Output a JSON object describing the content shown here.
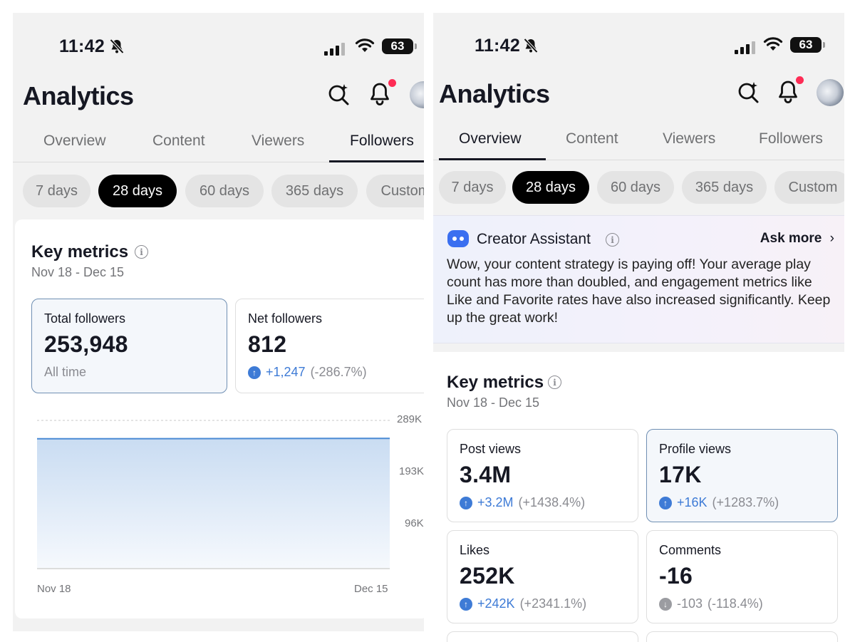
{
  "left": {
    "status": {
      "time": "11:42",
      "battery": "63"
    },
    "title": "Analytics",
    "tabs": [
      "Overview",
      "Content",
      "Viewers",
      "Followers"
    ],
    "active_tab": "Followers",
    "periods": [
      "7 days",
      "28 days",
      "60 days",
      "365 days",
      "Custom"
    ],
    "active_period": "28 days",
    "key_metrics": {
      "title": "Key metrics",
      "date_range": "Nov 18 - Dec 15"
    },
    "metrics": [
      {
        "label": "Total followers",
        "value": "253,948",
        "sub": "All time"
      },
      {
        "label": "Net followers",
        "value": "812",
        "change": "+1,247",
        "pct": "(-286.7%)"
      }
    ]
  },
  "chart_data": {
    "type": "area",
    "x": [
      "Nov 18",
      "Dec 15"
    ],
    "x_tick_labels": [
      "Nov 18",
      "Dec 15"
    ],
    "y_tick_labels": [
      "289K",
      "193K",
      "96K"
    ],
    "y_ticks": [
      289000,
      193000,
      96000
    ],
    "ylim": [
      0,
      289000
    ],
    "series": [
      {
        "values": [
          253136,
          253948
        ]
      }
    ],
    "grid": true,
    "color": "#4a8ad4"
  },
  "right": {
    "status": {
      "time": "11:42",
      "battery": "63"
    },
    "title": "Analytics",
    "tabs": [
      "Overview",
      "Content",
      "Viewers",
      "Followers"
    ],
    "active_tab": "Overview",
    "periods": [
      "7 days",
      "28 days",
      "60 days",
      "365 days",
      "Custom"
    ],
    "active_period": "28 days",
    "assistant": {
      "title": "Creator Assistant",
      "ask_more": "Ask more",
      "text": "Wow, your content strategy is paying off! Your average play count has more than doubled, and engagement metrics like Like and Favorite rates have also increased significantly. Keep up the great work!"
    },
    "key_metrics": {
      "title": "Key metrics",
      "date_range": "Nov 18 - Dec 15"
    },
    "metrics": [
      {
        "label": "Post views",
        "value": "3.4M",
        "change": "+3.2M",
        "pct": "(+1438.4%)"
      },
      {
        "label": "Profile views",
        "value": "17K",
        "change": "+16K",
        "pct": "(+1283.7%)"
      },
      {
        "label": "Likes",
        "value": "252K",
        "change": "+242K",
        "pct": "(+2341.1%)"
      },
      {
        "label": "Comments",
        "value": "-16",
        "change": "-103",
        "pct": "(-118.4%)"
      }
    ]
  },
  "colors": {
    "accent_red": "#fe2c55",
    "up_blue": "#3e7bd6",
    "chart_line": "#4a8ad4"
  }
}
